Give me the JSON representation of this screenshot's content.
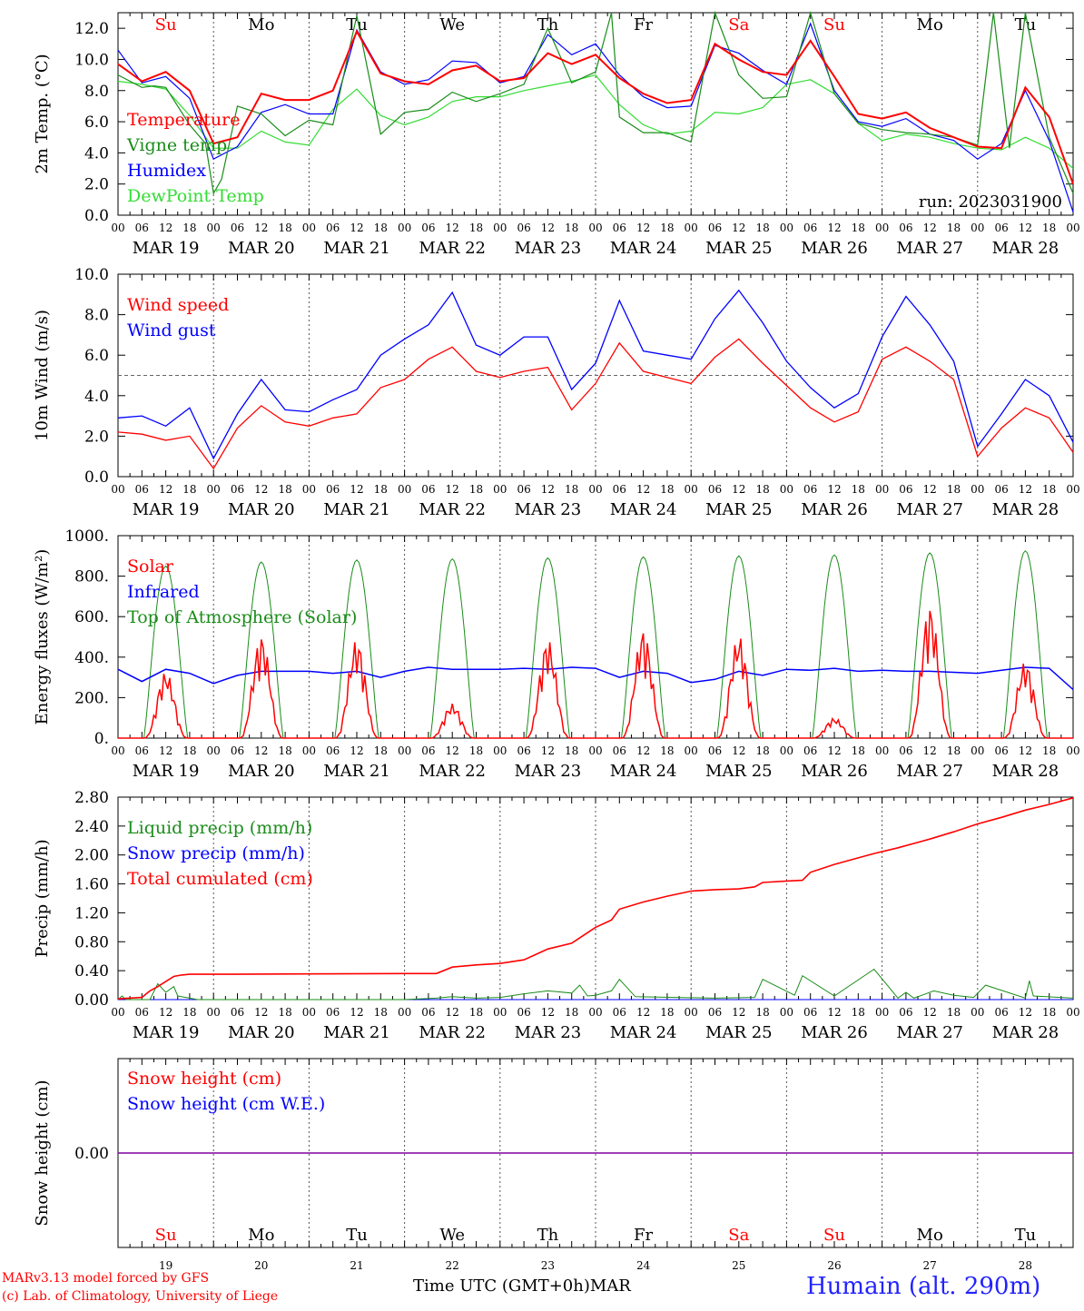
{
  "colors": {
    "red": "#ff0000",
    "green": "#1a8c1a",
    "blue": "#0000ff",
    "lightgreen": "#33dd33",
    "purple": "#8000a0",
    "grid": "#666666"
  },
  "date_labels": [
    "MAR 19",
    "MAR 20",
    "MAR 21",
    "MAR 22",
    "MAR 23",
    "MAR 24",
    "MAR 25",
    "MAR 26",
    "MAR 27",
    "MAR 28"
  ],
  "hour_labels": [
    "00",
    "06",
    "12",
    "18"
  ],
  "final_hour_label": "00",
  "weekdays": [
    {
      "label": "Su",
      "color": "#ff0000"
    },
    {
      "label": "Mo",
      "color": "#000000"
    },
    {
      "label": "Tu",
      "color": "#000000"
    },
    {
      "label": "We",
      "color": "#000000"
    },
    {
      "label": "Th",
      "color": "#000000"
    },
    {
      "label": "Fr",
      "color": "#000000"
    },
    {
      "label": "Sa",
      "color": "#ff0000"
    },
    {
      "label": "Su",
      "color": "#ff0000"
    },
    {
      "label": "Mo",
      "color": "#000000"
    },
    {
      "label": "Tu",
      "color": "#000000"
    }
  ],
  "day_numbers": [
    "19",
    "20",
    "21",
    "22",
    "23",
    "24",
    "25",
    "26",
    "27",
    "28"
  ],
  "footer": {
    "credit_line1": "MARv3.13 model forced by GFS",
    "credit_line2": "(c) Lab. of Climatology, University of Liege",
    "time_axis": "Time UTC (GMT+0h)",
    "month": "MAR",
    "station": "Humain (alt. 290m)"
  },
  "chart_data": [
    {
      "type": "line",
      "ylabel": "2m Temp. (°C)",
      "ylim": [
        0,
        13
      ],
      "yticks": [
        "0.0",
        "2.0",
        "4.0",
        "6.0",
        "8.0",
        "10.0",
        "12.0"
      ],
      "run_label": "run: 2023031900",
      "x_unit": "hours since MAR 19 00 UTC",
      "series": [
        {
          "name": "Temperature",
          "color": "#ff0000",
          "x": [
            0,
            6,
            12,
            18,
            24,
            30,
            36,
            42,
            48,
            54,
            60,
            66,
            72,
            78,
            84,
            90,
            96,
            102,
            108,
            114,
            120,
            126,
            132,
            138,
            144,
            150,
            156,
            162,
            168,
            174,
            180,
            186,
            192,
            198,
            204,
            210,
            216,
            222,
            228,
            234,
            240
          ],
          "y": [
            9.7,
            8.6,
            9.2,
            8.0,
            4.6,
            5.0,
            7.8,
            7.4,
            7.4,
            8.0,
            11.8,
            9.1,
            8.6,
            8.4,
            9.3,
            9.6,
            8.6,
            8.8,
            10.4,
            9.7,
            10.3,
            8.8,
            7.8,
            7.2,
            7.4,
            11.0,
            10.0,
            9.2,
            9.0,
            11.2,
            8.9,
            6.5,
            6.2,
            6.6,
            5.6,
            5.0,
            4.4,
            4.3,
            8.2,
            6.3,
            2.0
          ]
        },
        {
          "name": "Vigne temp",
          "color": "#1a8c1a",
          "x": [
            0,
            6,
            9,
            12,
            18,
            22,
            24,
            26,
            30,
            36,
            42,
            48,
            54,
            58,
            60,
            66,
            72,
            78,
            84,
            90,
            96,
            102,
            108,
            112,
            114,
            120,
            124,
            126,
            132,
            138,
            144,
            150,
            156,
            162,
            168,
            174,
            180,
            186,
            192,
            198,
            204,
            210,
            216,
            220,
            224,
            228,
            234,
            240
          ],
          "y": [
            9.0,
            8.2,
            8.3,
            8.2,
            5.8,
            4.6,
            1.4,
            2.3,
            7.0,
            6.5,
            5.1,
            6.1,
            5.8,
            10.5,
            12.8,
            5.2,
            6.6,
            6.8,
            7.9,
            7.3,
            7.8,
            8.4,
            12.0,
            9.7,
            8.5,
            9.2,
            13.0,
            6.3,
            5.3,
            5.3,
            4.7,
            13.0,
            9.0,
            7.5,
            7.6,
            13.0,
            7.8,
            5.9,
            5.5,
            5.3,
            5.2,
            5.0,
            4.5,
            13.0,
            4.3,
            13.0,
            5.0,
            1.4
          ]
        },
        {
          "name": "Humidex",
          "color": "#0000ff",
          "x": [
            0,
            6,
            12,
            18,
            24,
            30,
            36,
            42,
            48,
            54,
            60,
            66,
            72,
            78,
            84,
            90,
            96,
            102,
            108,
            114,
            120,
            126,
            132,
            138,
            144,
            150,
            156,
            162,
            168,
            174,
            180,
            186,
            192,
            198,
            204,
            210,
            216,
            222,
            228,
            234,
            240
          ],
          "y": [
            10.6,
            8.5,
            8.9,
            7.5,
            3.6,
            4.4,
            6.6,
            7.1,
            6.5,
            6.5,
            11.9,
            9.2,
            8.4,
            8.7,
            9.9,
            9.8,
            8.5,
            8.9,
            11.6,
            10.3,
            11.0,
            9.0,
            7.6,
            6.9,
            7.0,
            10.9,
            10.4,
            9.3,
            8.4,
            12.3,
            8.0,
            6.0,
            5.7,
            6.2,
            5.2,
            4.8,
            3.6,
            4.6,
            8.0,
            4.8,
            0.2
          ]
        },
        {
          "name": "DewPoint Temp",
          "color": "#33dd33",
          "x": [
            0,
            6,
            12,
            18,
            24,
            30,
            36,
            42,
            48,
            54,
            60,
            66,
            72,
            78,
            84,
            90,
            96,
            102,
            108,
            114,
            120,
            126,
            132,
            138,
            144,
            150,
            156,
            162,
            168,
            174,
            180,
            186,
            192,
            198,
            204,
            210,
            216,
            222,
            228,
            234,
            240
          ],
          "y": [
            8.6,
            8.4,
            8.1,
            6.4,
            4.3,
            4.3,
            5.4,
            4.7,
            4.5,
            6.8,
            8.1,
            6.4,
            5.8,
            6.3,
            7.3,
            7.6,
            7.6,
            8.0,
            8.3,
            8.6,
            9.0,
            7.1,
            5.8,
            5.2,
            5.4,
            6.6,
            6.5,
            6.9,
            8.4,
            8.7,
            7.8,
            5.9,
            4.8,
            5.2,
            5.0,
            4.6,
            4.3,
            4.2,
            5.0,
            4.3,
            3.0
          ]
        }
      ]
    },
    {
      "type": "line",
      "ylabel": "10m Wind (m/s)",
      "ylim": [
        0,
        10
      ],
      "yticks": [
        "0.0",
        "2.0",
        "4.0",
        "6.0",
        "8.0",
        "10.0"
      ],
      "reference_line": 5,
      "x_unit": "hours since MAR 19 00 UTC",
      "series": [
        {
          "name": "Wind speed",
          "color": "#ff0000",
          "x": [
            0,
            6,
            12,
            18,
            24,
            30,
            36,
            42,
            48,
            54,
            60,
            66,
            72,
            78,
            84,
            90,
            96,
            102,
            108,
            114,
            120,
            126,
            132,
            138,
            144,
            150,
            156,
            162,
            168,
            174,
            180,
            186,
            192,
            198,
            204,
            210,
            216,
            222,
            228,
            234,
            240
          ],
          "y": [
            2.2,
            2.1,
            1.8,
            2.0,
            0.4,
            2.4,
            3.5,
            2.7,
            2.5,
            2.9,
            3.1,
            4.4,
            4.8,
            5.8,
            6.4,
            5.2,
            4.9,
            5.2,
            5.4,
            3.3,
            4.6,
            6.6,
            5.2,
            4.9,
            4.6,
            5.9,
            6.8,
            5.6,
            4.5,
            3.4,
            2.7,
            3.2,
            5.8,
            6.4,
            5.7,
            4.8,
            1.0,
            2.4,
            3.4,
            2.9,
            1.2
          ]
        },
        {
          "name": "Wind gust",
          "color": "#0000ff",
          "x": [
            0,
            6,
            12,
            18,
            24,
            30,
            36,
            42,
            48,
            54,
            60,
            66,
            72,
            78,
            84,
            90,
            96,
            102,
            108,
            114,
            120,
            126,
            132,
            138,
            144,
            150,
            156,
            162,
            168,
            174,
            180,
            186,
            192,
            198,
            204,
            210,
            216,
            222,
            228,
            234,
            240
          ],
          "y": [
            2.9,
            3.0,
            2.5,
            3.4,
            0.9,
            3.1,
            4.8,
            3.3,
            3.2,
            3.8,
            4.3,
            6.0,
            6.8,
            7.5,
            9.1,
            6.5,
            6.0,
            6.9,
            6.9,
            4.3,
            5.6,
            8.7,
            6.2,
            6.0,
            5.8,
            7.8,
            9.2,
            7.6,
            5.7,
            4.4,
            3.4,
            4.1,
            6.9,
            8.9,
            7.5,
            5.7,
            1.5,
            3.1,
            4.8,
            4.0,
            1.7
          ]
        }
      ]
    },
    {
      "type": "line",
      "ylabel": "Energy fluxes (W/m²)",
      "ylim": [
        0,
        1000
      ],
      "yticks": [
        "0.",
        "200.",
        "400.",
        "600.",
        "800.",
        "1000."
      ],
      "x_unit": "hours since MAR 19 00 UTC",
      "daily_peaks": {
        "Top of Atmosphere (Solar)": [
          850,
          870,
          880,
          885,
          890,
          895,
          900,
          905,
          915,
          925
        ],
        "Solar": [
          330,
          510,
          490,
          170,
          490,
          540,
          510,
          100,
          660,
          380
        ]
      },
      "Infrared": {
        "x": [
          0,
          6,
          12,
          18,
          24,
          30,
          36,
          42,
          48,
          54,
          60,
          66,
          72,
          78,
          84,
          90,
          96,
          102,
          108,
          114,
          120,
          126,
          132,
          138,
          144,
          150,
          156,
          162,
          168,
          174,
          180,
          186,
          192,
          198,
          204,
          210,
          216,
          222,
          228,
          234,
          240
        ],
        "y": [
          340,
          280,
          340,
          320,
          270,
          310,
          330,
          330,
          330,
          320,
          330,
          300,
          330,
          350,
          340,
          340,
          340,
          345,
          340,
          350,
          345,
          300,
          330,
          320,
          275,
          290,
          330,
          310,
          340,
          335,
          345,
          330,
          335,
          330,
          330,
          325,
          320,
          335,
          350,
          345,
          240
        ]
      },
      "series": [
        {
          "name": "Solar",
          "color": "#ff0000"
        },
        {
          "name": "Infrared",
          "color": "#0000ff"
        },
        {
          "name": "Top of Atmosphere (Solar)",
          "color": "#1a8c1a"
        }
      ]
    },
    {
      "type": "line",
      "ylabel": "Precip (mm/h)",
      "ylim": [
        0,
        2.8
      ],
      "yticks": [
        "0.00",
        "0.40",
        "0.80",
        "1.20",
        "1.60",
        "2.00",
        "2.40",
        "2.80"
      ],
      "x_unit": "hours since MAR 19 00 UTC",
      "series": [
        {
          "name": "Liquid precip (mm/h)",
          "color": "#1a8c1a",
          "x": [
            0,
            1,
            2,
            8,
            10,
            12,
            14,
            15,
            18,
            20,
            60,
            72,
            80,
            84,
            90,
            96,
            102,
            108,
            114,
            116,
            118,
            120,
            124,
            126,
            130,
            150,
            160,
            162,
            170,
            172,
            180,
            190,
            196,
            198,
            200,
            205,
            210,
            215,
            218,
            228,
            229,
            230,
            240
          ],
          "y": [
            0,
            0.05,
            0,
            0,
            0.22,
            0.1,
            0.18,
            0.05,
            0.02,
            0,
            0,
            0,
            0.02,
            0.04,
            0.02,
            0.03,
            0.08,
            0.12,
            0.09,
            0.2,
            0.05,
            0.06,
            0.12,
            0.28,
            0.04,
            0.02,
            0.03,
            0.28,
            0.06,
            0.33,
            0.05,
            0.42,
            0.02,
            0.1,
            0.02,
            0.12,
            0.06,
            0.03,
            0.2,
            0.02,
            0.26,
            0.05,
            0.02
          ]
        },
        {
          "name": "Snow precip (mm/h)",
          "color": "#0000ff",
          "x": [
            0,
            240
          ],
          "y": [
            0,
            0
          ]
        },
        {
          "name": "Total cumulated (cm)",
          "color": "#ff0000",
          "x": [
            0,
            6,
            8,
            10,
            12,
            14,
            16,
            18,
            24,
            48,
            72,
            80,
            84,
            90,
            96,
            102,
            108,
            114,
            120,
            124,
            126,
            132,
            138,
            144,
            150,
            156,
            160,
            162,
            168,
            172,
            174,
            180,
            186,
            190,
            196,
            204,
            210,
            216,
            222,
            228,
            234,
            240
          ],
          "y": [
            0.01,
            0.03,
            0.12,
            0.18,
            0.25,
            0.32,
            0.34,
            0.35,
            0.35,
            0.355,
            0.36,
            0.36,
            0.45,
            0.48,
            0.5,
            0.55,
            0.7,
            0.78,
            1.0,
            1.1,
            1.25,
            1.35,
            1.43,
            1.5,
            1.52,
            1.53,
            1.56,
            1.62,
            1.64,
            1.65,
            1.76,
            1.87,
            1.96,
            2.02,
            2.1,
            2.22,
            2.32,
            2.43,
            2.52,
            2.62,
            2.7,
            2.79
          ]
        }
      ]
    },
    {
      "type": "line",
      "ylabel": "Snow height (cm)",
      "yticks": [
        "0.00"
      ],
      "x_unit": "hours since MAR 19 00 UTC",
      "series": [
        {
          "name": "Snow height (cm)",
          "color": "#ff0000",
          "x": [
            0,
            240
          ],
          "y": [
            0,
            0
          ]
        },
        {
          "name": "Snow height (cm W.E.)",
          "color": "#0000ff",
          "x": [
            0,
            240
          ],
          "y": [
            0,
            0
          ]
        }
      ]
    }
  ]
}
